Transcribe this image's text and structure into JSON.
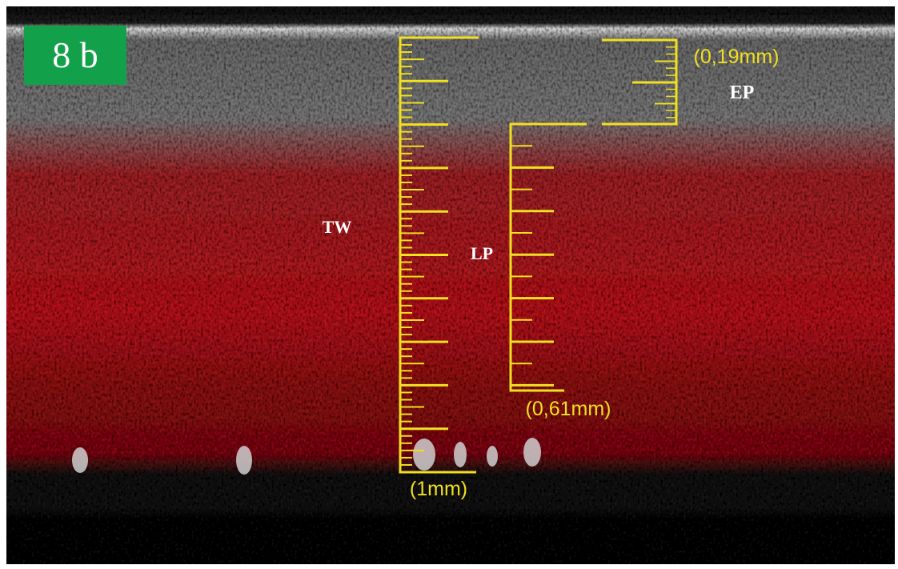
{
  "panel_label": "8 b",
  "annotations": {
    "tw": "TW",
    "lp": "LP",
    "ep": "EP"
  },
  "scale_bars": {
    "total": "(1mm)",
    "lamina_propria": "(0,61mm)",
    "epithelium": "(0,19mm)"
  }
}
